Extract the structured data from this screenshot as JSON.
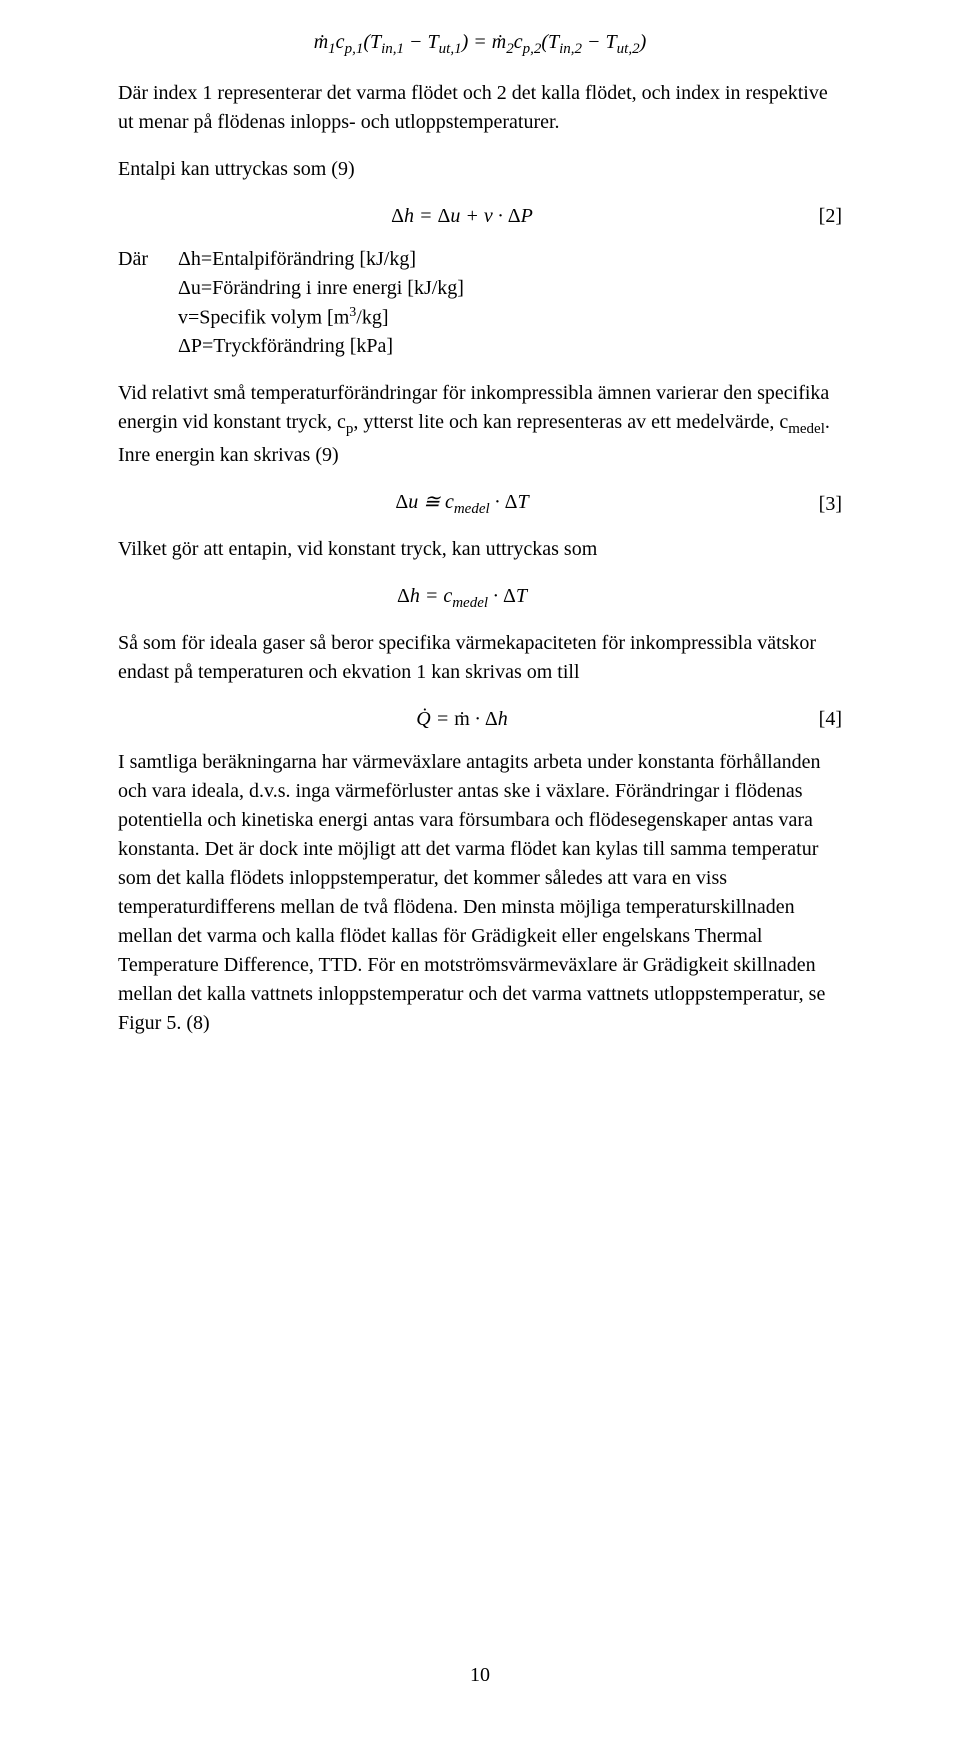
{
  "equations": {
    "eq_top": "ṁ₁c_{p,1}(T_{in,1} − T_{ut,1}) = ṁ₂c_{p,2}(T_{in,2} − T_{ut,2})",
    "eq2": "Δh = Δu + v · ΔP",
    "eq2_num": "[2]",
    "eq3": "Δu ≅ c_{medel} · ΔT",
    "eq3_num": "[3]",
    "eq_dh": "Δh = c_{medel} · ΔT",
    "eq4": "Q̇ = ṁ · Δh",
    "eq4_num": "[4]"
  },
  "paragraphs": {
    "p1": "Där index 1 representerar det varma flödet och 2 det kalla flödet, och index in respektive ut menar på flödenas inlopps- och utloppstemperaturer.",
    "p2": "Entalpi kan uttryckas som (9)",
    "where_label": "Där",
    "defs": {
      "d1": "Δh=Entalpiförändring [kJ/kg]",
      "d2": "Δu=Förändring i inre energi [kJ/kg]",
      "d3_pre": "v=Specifik volym [m",
      "d3_sup": "3",
      "d3_post": "/kg]",
      "d4": "ΔP=Tryckförändring [kPa]"
    },
    "p3_pre": "Vid relativt små temperaturförändringar för inkompressibla ämnen varierar den specifika energin vid konstant tryck, c",
    "p3_sub1": "p",
    "p3_mid": ", ytterst lite och kan representeras av ett medelvärde, c",
    "p3_sub2": "medel",
    "p3_post": ". Inre energin kan skrivas (9)",
    "p4": "Vilket gör att entapin, vid konstant tryck, kan uttryckas som",
    "p5": "Så som för ideala gaser så beror specifika värmekapaciteten för inkompressibla vätskor endast på temperaturen och ekvation 1 kan skrivas om till",
    "p6": "I samtliga beräkningarna har värmeväxlare antagits arbeta under konstanta förhållanden och vara ideala, d.v.s. inga värmeförluster antas ske i växlare. Förändringar i flödenas potentiella och kinetiska energi antas vara försumbara och flödesegenskaper antas vara konstanta. Det är dock inte möjligt att det varma flödet kan kylas till samma temperatur som det kalla flödets inloppstemperatur, det kommer således att vara en viss temperaturdifferens mellan de två flödena. Den minsta möjliga temperaturskillnaden mellan det varma och kalla flödet kallas för Grädigkeit eller engelskans Thermal Temperature Difference, TTD. För en motströmsvärmeväxlare är Grädigkeit skillnaden mellan det kalla vattnets inloppstemperatur och det varma vattnets utloppstemperatur, se Figur 5. (8)"
  },
  "page_number": "10"
}
